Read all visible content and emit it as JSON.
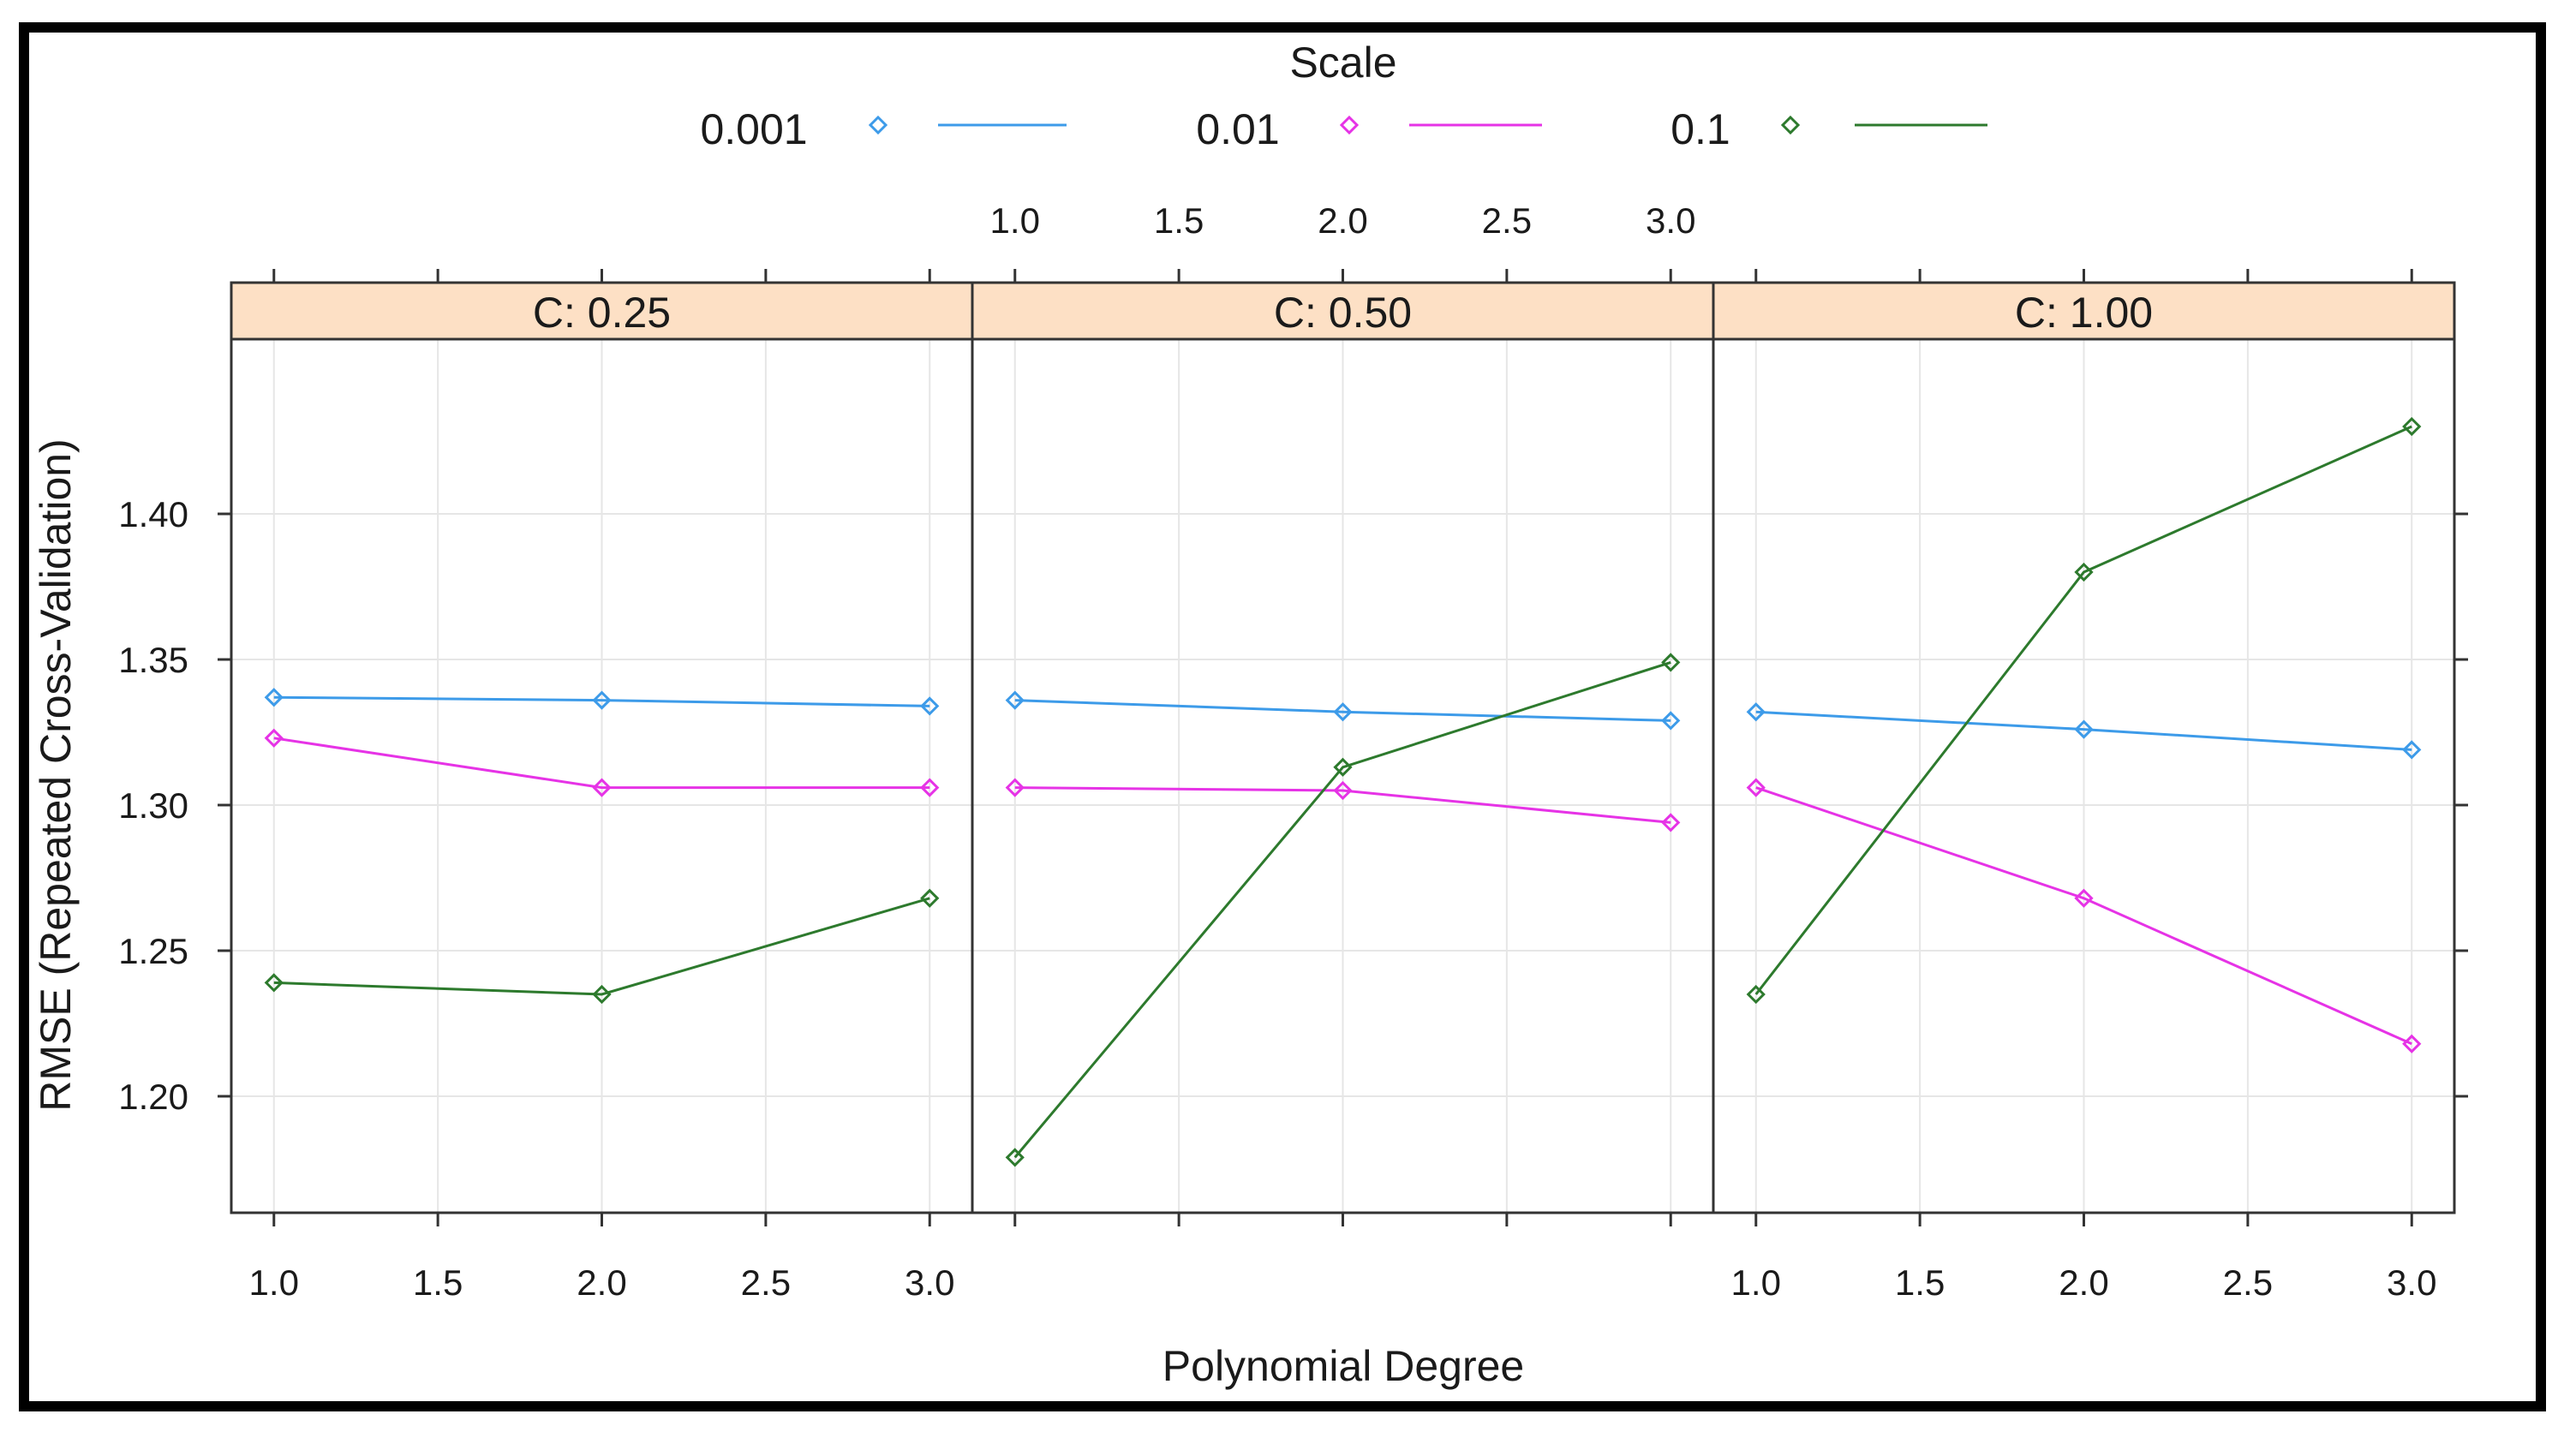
{
  "chart_data": {
    "type": "line",
    "title": "",
    "xlabel": "Polynomial Degree",
    "ylabel": "RMSE (Repeated Cross-Validation)",
    "xlim": [
      0.87,
      3.13
    ],
    "ylim": [
      1.16,
      1.46
    ],
    "x_ticks": [
      "1.0",
      "1.5",
      "2.0",
      "2.5",
      "3.0"
    ],
    "y_ticks": [
      "1.20",
      "1.25",
      "1.30",
      "1.35",
      "1.40"
    ],
    "legend": {
      "title": "Scale",
      "placement": "top",
      "entries": [
        {
          "label": "0.001",
          "color": "#3d9be9"
        },
        {
          "label": "0.01",
          "color": "#e633e6"
        },
        {
          "label": "0.1",
          "color": "#2d7a2d"
        }
      ]
    },
    "strip_color": "#fde0c5",
    "x": [
      1,
      2,
      3
    ],
    "panels": [
      {
        "strip": "C: 0.25",
        "series": [
          {
            "name": "0.001",
            "color": "#3d9be9",
            "values": [
              1.337,
              1.336,
              1.334
            ]
          },
          {
            "name": "0.01",
            "color": "#e633e6",
            "values": [
              1.323,
              1.306,
              1.306
            ]
          },
          {
            "name": "0.1",
            "color": "#2d7a2d",
            "values": [
              1.239,
              1.235,
              1.268
            ]
          }
        ]
      },
      {
        "strip": "C: 0.50",
        "series": [
          {
            "name": "0.001",
            "color": "#3d9be9",
            "values": [
              1.336,
              1.332,
              1.329
            ]
          },
          {
            "name": "0.01",
            "color": "#e633e6",
            "values": [
              1.306,
              1.305,
              1.294
            ]
          },
          {
            "name": "0.1",
            "color": "#2d7a2d",
            "values": [
              1.179,
              1.313,
              1.349
            ]
          }
        ]
      },
      {
        "strip": "C: 1.00",
        "series": [
          {
            "name": "0.001",
            "color": "#3d9be9",
            "values": [
              1.332,
              1.326,
              1.319
            ]
          },
          {
            "name": "0.01",
            "color": "#e633e6",
            "values": [
              1.306,
              1.268,
              1.218
            ]
          },
          {
            "name": "0.1",
            "color": "#2d7a2d",
            "values": [
              1.235,
              1.38,
              1.43
            ]
          }
        ]
      }
    ]
  }
}
